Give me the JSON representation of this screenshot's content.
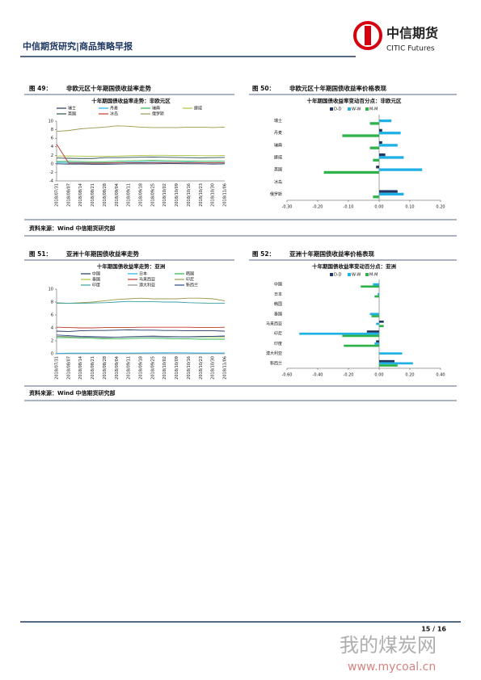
{
  "header": {
    "title": "中信期货研究|商品策略早报",
    "logo_cn": "中信期货",
    "logo_en": "CITIC Futures"
  },
  "figures": [
    {
      "label": "图 49：",
      "caption": "非欧元区十年期国债收益率走势"
    },
    {
      "label": "图 50：",
      "caption": "非欧元区十年期国债收益率价格表现"
    },
    {
      "label": "图 51：",
      "caption": "亚洲十年期国债收益率走势"
    },
    {
      "label": "图 52：",
      "caption": "亚洲十年期国债收益率价格表现"
    }
  ],
  "sources": [
    "资料来源：Wind  中信期货研究部",
    "资料来源：Wind  中信期货研究部"
  ],
  "chart_data": [
    {
      "type": "line",
      "title": "十年期国债收益率走势：非欧元区",
      "categories": [
        "2018/07/31",
        "2018/08/07",
        "2018/08/14",
        "2018/08/21",
        "2018/08/28",
        "2018/09/04",
        "2018/09/11",
        "2018/09/18",
        "2018/09/25",
        "2018/10/02",
        "2018/10/09",
        "2018/10/16",
        "2018/10/23",
        "2018/10/30",
        "2018/11/06"
      ],
      "ylim": [
        -4,
        10
      ],
      "yticks": [
        -4,
        -2,
        0,
        2,
        4,
        6,
        8,
        10
      ],
      "series": [
        {
          "name": "瑞士",
          "color": "#1f3864",
          "values": [
            0.0,
            -0.05,
            -0.05,
            -0.1,
            -0.1,
            -0.05,
            0.0,
            0.0,
            0.0,
            0.05,
            0.05,
            0.0,
            0.0,
            -0.05,
            0.0
          ]
        },
        {
          "name": "丹麦",
          "color": "#1fb0e6",
          "values": [
            0.35,
            0.3,
            0.3,
            0.25,
            0.25,
            0.3,
            0.35,
            0.4,
            0.4,
            0.4,
            0.35,
            0.35,
            0.3,
            0.3,
            0.3
          ]
        },
        {
          "name": "瑞典",
          "color": "#2db34a",
          "values": [
            0.55,
            0.6,
            0.55,
            0.5,
            0.5,
            0.6,
            0.7,
            0.75,
            0.8,
            0.75,
            0.7,
            0.65,
            0.6,
            0.6,
            0.6
          ]
        },
        {
          "name": "挪威",
          "color": "#a8c43a",
          "values": [
            1.8,
            1.85,
            1.8,
            1.75,
            1.75,
            1.8,
            1.9,
            1.95,
            2.0,
            2.0,
            1.95,
            1.95,
            1.9,
            1.9,
            1.95
          ]
        },
        {
          "name": "英国",
          "color": "#2f4f4f",
          "values": [
            1.35,
            1.3,
            1.25,
            1.25,
            1.45,
            1.45,
            1.5,
            1.55,
            1.6,
            1.55,
            1.5,
            1.45,
            1.4,
            1.45,
            1.5
          ]
        },
        {
          "name": "冰岛",
          "color": "#c0392b",
          "values": [
            4.6,
            0.2,
            0.2,
            0.2,
            0.2,
            0.25,
            0.25,
            0.25,
            0.3,
            0.3,
            0.3,
            0.25,
            0.25,
            0.25,
            0.25
          ]
        },
        {
          "name": "俄罗斯",
          "color": "#9c9a4a",
          "values": [
            7.6,
            7.8,
            8.2,
            8.4,
            8.6,
            8.9,
            8.8,
            8.6,
            8.5,
            8.5,
            8.5,
            8.6,
            8.6,
            8.5,
            8.6
          ]
        }
      ]
    },
    {
      "type": "barh",
      "title": "十年期国债收益率变动百分点：非欧元区",
      "categories": [
        "瑞士",
        "丹麦",
        "瑞典",
        "挪威",
        "英国",
        "冰岛",
        "俄罗斯"
      ],
      "xlim": [
        -0.3,
        0.2
      ],
      "xticks": [
        {
          "value": -0.3,
          "label": "-0.30"
        },
        {
          "value": -0.2,
          "label": "-0.20"
        },
        {
          "value": -0.1,
          "label": "-0.10"
        },
        {
          "value": 0,
          "label": "0.00"
        },
        {
          "value": 0.1,
          "label": "0.10"
        },
        {
          "value": 0.2,
          "label": "0.20"
        }
      ],
      "series": [
        {
          "name": "D-D",
          "color": "#1f3864",
          "values": [
            0.0,
            0.01,
            0.01,
            0.02,
            -0.01,
            0,
            0.06
          ]
        },
        {
          "name": "W-W",
          "color": "#1fb0e6",
          "values": [
            0.04,
            0.07,
            0.06,
            0.08,
            0.14,
            0,
            0.08
          ]
        },
        {
          "name": "M-M",
          "color": "#2db34a",
          "values": [
            -0.03,
            -0.12,
            -0.03,
            -0.02,
            -0.18,
            0,
            -0.02
          ]
        }
      ]
    },
    {
      "type": "line",
      "title": "十年期国债收益率走势：亚洲",
      "categories": [
        "2018/07/31",
        "2018/08/07",
        "2018/08/14",
        "2018/08/21",
        "2018/08/28",
        "2018/09/04",
        "2018/09/11",
        "2018/09/18",
        "2018/09/25",
        "2018/10/02",
        "2018/10/09",
        "2018/10/16",
        "2018/10/23",
        "2018/10/30",
        "2018/11/06"
      ],
      "ylim": [
        0,
        10
      ],
      "yticks": [
        0,
        2,
        4,
        6,
        8,
        10
      ],
      "series": [
        {
          "name": "中国",
          "color": "#1f3864",
          "values": [
            3.5,
            3.45,
            3.55,
            3.6,
            3.6,
            3.65,
            3.7,
            3.65,
            3.65,
            3.6,
            3.6,
            3.55,
            3.55,
            3.55,
            3.5
          ]
        },
        {
          "name": "日本",
          "color": "#1fb0e6",
          "values": [
            0.05,
            0.1,
            0.1,
            0.1,
            0.1,
            0.1,
            0.1,
            0.12,
            0.13,
            0.14,
            0.15,
            0.13,
            0.11,
            0.12,
            0.12
          ]
        },
        {
          "name": "韩国",
          "color": "#2db34a",
          "values": [
            2.5,
            2.5,
            2.45,
            2.4,
            2.3,
            2.3,
            2.35,
            2.4,
            2.4,
            2.35,
            2.3,
            2.3,
            2.25,
            2.25,
            2.25
          ]
        },
        {
          "name": "泰国",
          "color": "#a8c43a",
          "values": [
            2.7,
            2.65,
            2.6,
            2.55,
            2.5,
            2.55,
            2.6,
            2.65,
            2.7,
            2.7,
            2.65,
            2.6,
            2.6,
            2.6,
            2.6
          ]
        },
        {
          "name": "马来西亚",
          "color": "#c0392b",
          "values": [
            4.1,
            4.05,
            4.0,
            4.0,
            4.05,
            4.05,
            4.05,
            4.1,
            4.1,
            4.1,
            4.1,
            4.1,
            4.05,
            4.05,
            4.1
          ]
        },
        {
          "name": "印尼",
          "color": "#9c9a4a",
          "values": [
            7.9,
            7.8,
            7.9,
            8.0,
            8.2,
            8.4,
            8.5,
            8.6,
            8.5,
            8.5,
            8.5,
            8.6,
            8.6,
            8.5,
            8.2
          ]
        },
        {
          "name": "印度",
          "color": "#3aa0a0",
          "values": [
            7.8,
            7.8,
            7.8,
            7.85,
            7.9,
            8.0,
            8.1,
            8.05,
            8.05,
            8.0,
            8.0,
            7.9,
            7.85,
            7.8,
            7.8
          ]
        },
        {
          "name": "澳大利亚",
          "color": "#8a8a8a",
          "values": [
            2.7,
            2.65,
            2.6,
            2.55,
            2.5,
            2.55,
            2.65,
            2.7,
            2.75,
            2.7,
            2.65,
            2.65,
            2.7,
            2.7,
            2.7
          ]
        },
        {
          "name": "新西兰",
          "color": "#2c4a8a",
          "values": [
            2.9,
            2.8,
            2.7,
            2.65,
            2.6,
            2.55,
            2.6,
            2.65,
            2.65,
            2.6,
            2.6,
            2.6,
            2.65,
            2.7,
            2.75
          ]
        }
      ]
    },
    {
      "type": "barh",
      "title": "十年期国债收益率变动百分点：亚洲",
      "categories": [
        "中国",
        "日本",
        "韩国",
        "泰国",
        "马来西亚",
        "印尼",
        "印度",
        "澳大利亚",
        "新西兰"
      ],
      "xlim": [
        -0.6,
        0.4
      ],
      "xticks": [
        {
          "value": -0.6,
          "label": "-0.60"
        },
        {
          "value": -0.4,
          "label": "-0.40"
        },
        {
          "value": -0.2,
          "label": "-0.20"
        },
        {
          "value": 0,
          "label": "0.00"
        },
        {
          "value": 0.2,
          "label": "0.20"
        },
        {
          "value": 0.4,
          "label": "0.40"
        }
      ],
      "series": [
        {
          "name": "D-D",
          "color": "#1f3864",
          "values": [
            0.0,
            0.0,
            0,
            0.0,
            0.03,
            -0.08,
            -0.02,
            0.0,
            0.1
          ]
        },
        {
          "name": "W-W",
          "color": "#1fb0e6",
          "values": [
            -0.04,
            -0.01,
            0,
            -0.06,
            -0.02,
            -0.52,
            -0.03,
            0.15,
            0.22
          ]
        },
        {
          "name": "M-M",
          "color": "#2db34a",
          "values": [
            -0.12,
            -0.03,
            0,
            -0.05,
            0.03,
            -0.24,
            -0.23,
            0.0,
            0.12
          ]
        }
      ]
    }
  ],
  "footer": {
    "page": "15 / 16"
  },
  "watermark": {
    "cn": "我的煤炭网",
    "url": "www.mycoal.cn"
  }
}
